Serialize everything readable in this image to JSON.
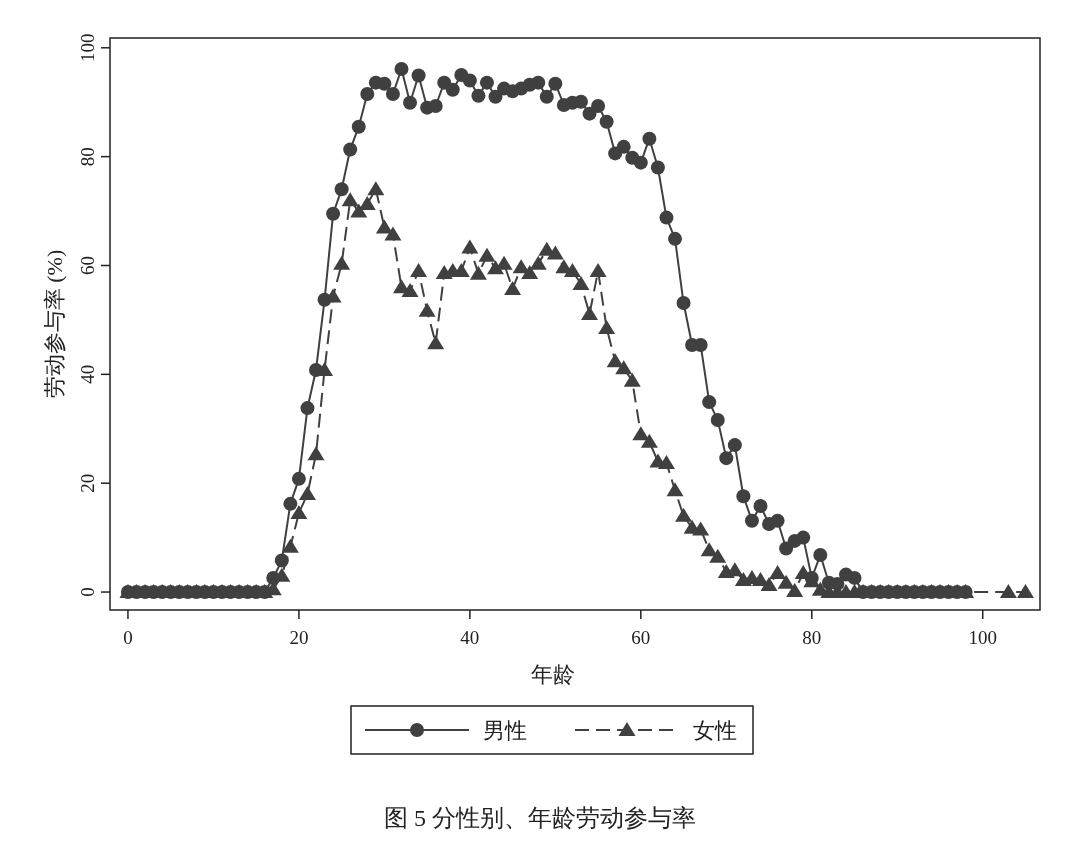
{
  "chart_data": {
    "type": "line",
    "title": "图 5 分性别、年龄劳动参与率",
    "xlabel": "年龄",
    "ylabel": "劳动参与率 (%)",
    "xlim": [
      -2.1,
      106.7
    ],
    "ylim": [
      -3.3,
      101.8
    ],
    "xticks": [
      0,
      20,
      40,
      60,
      80,
      100
    ],
    "yticks": [
      0,
      20,
      40,
      60,
      80,
      100
    ],
    "grid": false,
    "legend": "bottom",
    "series": [
      {
        "name": "男性",
        "color": "#404040",
        "marker": "circle",
        "line_style": "solid",
        "x": [
          0,
          1,
          2,
          3,
          4,
          5,
          6,
          7,
          8,
          9,
          10,
          11,
          12,
          13,
          14,
          15,
          16,
          17,
          18,
          19,
          20,
          21,
          22,
          23,
          24,
          25,
          26,
          27,
          28,
          29,
          30,
          31,
          32,
          33,
          34,
          35,
          36,
          37,
          38,
          39,
          40,
          41,
          42,
          43,
          44,
          45,
          46,
          47,
          48,
          49,
          50,
          51,
          52,
          53,
          54,
          55,
          56,
          57,
          58,
          59,
          60,
          61,
          62,
          63,
          64,
          65,
          66,
          67,
          68,
          69,
          70,
          71,
          72,
          73,
          74,
          75,
          76,
          77,
          78,
          79,
          80,
          81,
          82,
          83,
          84,
          85,
          86,
          87,
          88,
          89,
          90,
          91,
          92,
          93,
          94,
          95,
          96,
          97,
          98
        ],
        "values": [
          0,
          0,
          0,
          0,
          0,
          0,
          0,
          0,
          0,
          0,
          0,
          0,
          0,
          0,
          0,
          0,
          0,
          2.6,
          5.8,
          16.2,
          20.8,
          33.8,
          40.8,
          53.7,
          69.5,
          74,
          81.3,
          85.5,
          91.5,
          93.6,
          93.4,
          91.5,
          96.1,
          89.9,
          94.9,
          89,
          89.3,
          93.6,
          92.3,
          95,
          94,
          91.2,
          93.6,
          91,
          92.5,
          92,
          92.5,
          93.2,
          93.6,
          91,
          93.4,
          89.5,
          89.9,
          90.1,
          87.9,
          89.3,
          86.4,
          80.6,
          81.8,
          79.8,
          78.9,
          83.3,
          78,
          68.8,
          64.9,
          53.1,
          45.4,
          45.4,
          34.9,
          31.6,
          24.6,
          27,
          17.6,
          13.1,
          15.8,
          12.5,
          13.1,
          8,
          9.4,
          10,
          2.6,
          6.8,
          1.7,
          1.5,
          3.2,
          2.6,
          0,
          0,
          0,
          0,
          0,
          0,
          0,
          0,
          0,
          0,
          0,
          0,
          0
        ]
      },
      {
        "name": "女性",
        "color": "#404040",
        "marker": "triangle",
        "line_style": "dashed",
        "x": [
          0,
          1,
          2,
          3,
          4,
          5,
          6,
          7,
          8,
          9,
          10,
          11,
          12,
          13,
          14,
          15,
          16,
          17,
          18,
          19,
          20,
          21,
          22,
          23,
          24,
          25,
          26,
          27,
          28,
          29,
          30,
          31,
          32,
          33,
          34,
          35,
          36,
          37,
          38,
          39,
          40,
          41,
          42,
          43,
          44,
          45,
          46,
          47,
          48,
          49,
          50,
          51,
          52,
          53,
          54,
          55,
          56,
          57,
          58,
          59,
          60,
          61,
          62,
          63,
          64,
          65,
          66,
          67,
          68,
          69,
          70,
          71,
          72,
          73,
          74,
          75,
          76,
          77,
          78,
          79,
          80,
          81,
          82,
          83,
          84,
          85,
          86,
          87,
          88,
          89,
          90,
          91,
          92,
          93,
          94,
          95,
          96,
          97,
          98,
          103,
          105
        ],
        "values": [
          0,
          0,
          0,
          0,
          0,
          0,
          0,
          0,
          0,
          0,
          0,
          0,
          0,
          0,
          0,
          0,
          0,
          0.5,
          3,
          8.3,
          14.5,
          18,
          25.3,
          40.8,
          54.3,
          60.3,
          72,
          69.9,
          71.3,
          74,
          67,
          65.7,
          56,
          55.3,
          59,
          51.7,
          45.7,
          58.6,
          59,
          59,
          63.3,
          58.5,
          61.8,
          59.5,
          60.3,
          55.7,
          59.7,
          58.6,
          60.3,
          62.9,
          62.2,
          59.7,
          59,
          56.6,
          51.1,
          59,
          48.5,
          42.4,
          41.1,
          38.8,
          29,
          27.6,
          24,
          23.7,
          18.7,
          14,
          11.8,
          11.5,
          7.7,
          6.5,
          3.7,
          4,
          2.2,
          2.6,
          2.2,
          1.3,
          3.5,
          1.7,
          0.2,
          3.5,
          2,
          0.4,
          0,
          0,
          0,
          0,
          0,
          0,
          0,
          0,
          0,
          0,
          0,
          0,
          0,
          0,
          0,
          0,
          0,
          0,
          0
        ]
      }
    ]
  }
}
